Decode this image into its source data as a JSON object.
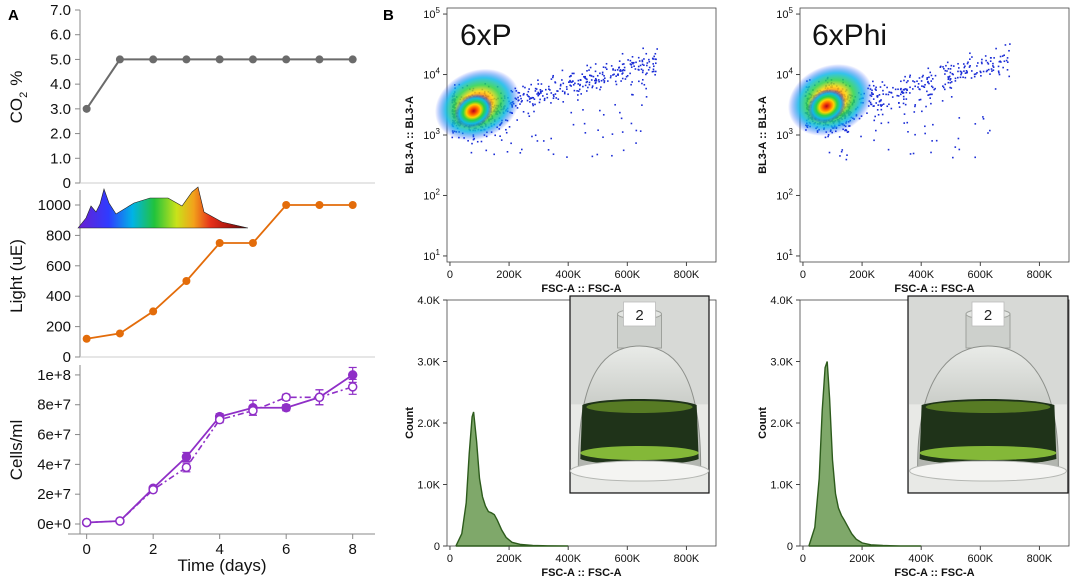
{
  "panel_labels": {
    "a": "A",
    "b": "B"
  },
  "sample_names": {
    "left": "6xP",
    "right": "6xPhi"
  },
  "colors": {
    "co2": "#6b6b6b",
    "light": "#e36c0a",
    "cells": "#8f2fc7",
    "hist_fill": "#7fa86a",
    "hist_line": "#2d5b1c",
    "flask_glass": "#c9ccc9",
    "flask_liquid": "#1f3319",
    "flask_algae": "#8fc63c"
  },
  "chart_data": [
    {
      "id": "co2",
      "type": "line",
      "xlabel": "",
      "ylabel": "CO₂ %",
      "ylabel_main": "CO",
      "ylabel_sub": "2",
      "ylabel_tail": "%",
      "x": [
        0,
        1,
        2,
        3,
        4,
        5,
        6,
        7,
        8
      ],
      "series": [
        {
          "name": "CO2",
          "values": [
            3.0,
            5.0,
            5.0,
            5.0,
            5.0,
            5.0,
            5.0,
            5.0,
            5.0
          ]
        }
      ],
      "ylim": [
        0,
        7
      ],
      "xlim": [
        -0.2,
        8.4
      ],
      "yticks": [
        "0",
        "1.0",
        "2.0",
        "3.0",
        "4.0",
        "5.0",
        "6.0",
        "7.0"
      ],
      "ytick_values": [
        0,
        1,
        2,
        3,
        4,
        5,
        6,
        7
      ]
    },
    {
      "id": "light",
      "type": "line",
      "xlabel": "",
      "ylabel": "Light (uE)",
      "x": [
        0,
        1,
        2,
        3,
        4,
        5,
        6,
        7,
        8
      ],
      "series": [
        {
          "name": "Light",
          "values": [
            120,
            155,
            300,
            500,
            750,
            750,
            1000,
            1000,
            1000
          ]
        }
      ],
      "ylim": [
        0,
        1000
      ],
      "xlim": [
        -0.2,
        8.4
      ],
      "yticks": [
        "0",
        "200",
        "400",
        "600",
        "800",
        "1000"
      ],
      "ytick_values": [
        0,
        200,
        400,
        600,
        800,
        1000
      ],
      "inset": "light spectrum"
    },
    {
      "id": "cells",
      "type": "line",
      "xlabel": "Time (days)",
      "ylabel": "Cells/ml",
      "x": [
        0,
        1,
        2,
        3,
        4,
        5,
        6,
        7,
        8
      ],
      "series": [
        {
          "name": "6xP",
          "style": "solid, filled markers",
          "values": [
            1000000.0,
            2000000.0,
            24000000.0,
            45000000.0,
            72000000.0,
            78000000.0,
            78000000.0,
            85000000.0,
            100000000.0
          ],
          "errors": [
            0,
            0,
            1000000.0,
            3000000.0,
            2000000.0,
            5000000.0,
            2000000.0,
            5000000.0,
            5000000.0
          ]
        },
        {
          "name": "6xPhi",
          "style": "dash-dot, open markers",
          "values": [
            1000000.0,
            2000000.0,
            23000000.0,
            38000000.0,
            70000000.0,
            76000000.0,
            85000000.0,
            85000000.0,
            92000000.0
          ],
          "errors": [
            0,
            0,
            1000000.0,
            3000000.0,
            2000000.0,
            3000000.0,
            2000000.0,
            5000000.0,
            5000000.0
          ]
        }
      ],
      "ylim": [
        0,
        108000000.0
      ],
      "xlim": [
        -0.2,
        8.4
      ],
      "yticks": [
        "0e+0",
        "2e+7",
        "4e+7",
        "6e+7",
        "8e+7",
        "1e+8"
      ],
      "ytick_values": [
        0,
        20000000.0,
        40000000.0,
        60000000.0,
        80000000.0,
        100000000.0
      ],
      "xticks": [
        "0",
        "2",
        "4",
        "6",
        "8"
      ],
      "xtick_values": [
        0,
        2,
        4,
        6,
        8
      ]
    },
    {
      "id": "scatter_6xP",
      "type": "scatter",
      "title": "6xP",
      "xlabel": "FSC-A :: FSC-A",
      "ylabel": "BL3-A :: BL3-A",
      "xlim": [
        -10000,
        900000
      ],
      "ylim_log10": [
        0.9,
        5.1
      ],
      "xticks": [
        "0",
        "200K",
        "400K",
        "600K",
        "800K"
      ],
      "xtick_values": [
        0,
        200000,
        400000,
        600000,
        800000
      ],
      "ytick_base": "10",
      "yticks_exp": [
        "1",
        "2",
        "3",
        "4",
        "5"
      ],
      "ytick_values_log10": [
        1,
        2,
        3,
        4,
        5
      ],
      "density_center": {
        "x": 80000,
        "y": 2500
      }
    },
    {
      "id": "scatter_6xPhi",
      "type": "scatter",
      "title": "6xPhi",
      "xlabel": "FSC-A :: FSC-A",
      "ylabel": "BL3-A :: BL3-A",
      "xlim": [
        -10000,
        900000
      ],
      "ylim_log10": [
        0.9,
        5.1
      ],
      "xticks": [
        "0",
        "200K",
        "400K",
        "600K",
        "800K"
      ],
      "xtick_values": [
        0,
        200000,
        400000,
        600000,
        800000
      ],
      "ytick_base": "10",
      "yticks_exp": [
        "1",
        "2",
        "3",
        "4",
        "5"
      ],
      "ytick_values_log10": [
        1,
        2,
        3,
        4,
        5
      ],
      "density_center": {
        "x": 80000,
        "y": 3000
      }
    },
    {
      "id": "hist_6xP",
      "type": "area",
      "xlabel": "FSC-A :: FSC-A",
      "ylabel": "Count",
      "xlim": [
        -10000,
        900000
      ],
      "ylim": [
        0,
        4000
      ],
      "xticks": [
        "0",
        "200K",
        "400K",
        "600K",
        "800K"
      ],
      "xtick_values": [
        0,
        200000,
        400000,
        600000,
        800000
      ],
      "yticks": [
        "0",
        "1.0K",
        "2.0K",
        "3.0K",
        "4.0K"
      ],
      "ytick_values": [
        0,
        1000,
        2000,
        3000,
        4000
      ],
      "x": [
        20000,
        40000,
        55000,
        65000,
        75000,
        80000,
        90000,
        100000,
        110000,
        120000,
        130000,
        140000,
        150000,
        160000,
        175000,
        190000,
        210000,
        240000,
        280000,
        330000,
        400000
      ],
      "values": [
        0,
        200,
        700,
        1500,
        2100,
        2180,
        1700,
        1100,
        800,
        650,
        560,
        540,
        510,
        420,
        260,
        140,
        60,
        25,
        10,
        3,
        0
      ]
    },
    {
      "id": "hist_6xPhi",
      "type": "area",
      "xlabel": "FSC-A :: FSC-A",
      "ylabel": "Count",
      "xlim": [
        -10000,
        900000
      ],
      "ylim": [
        0,
        4000
      ],
      "xticks": [
        "0",
        "200K",
        "400K",
        "600K",
        "800K"
      ],
      "xtick_values": [
        0,
        200000,
        400000,
        600000,
        800000
      ],
      "yticks": [
        "0",
        "1.0K",
        "2.0K",
        "3.0K",
        "4.0K"
      ],
      "ytick_values": [
        0,
        1000,
        2000,
        3000,
        4000
      ],
      "x": [
        20000,
        40000,
        55000,
        65000,
        75000,
        82000,
        90000,
        100000,
        110000,
        120000,
        130000,
        140000,
        150000,
        165000,
        180000,
        200000,
        230000,
        270000,
        330000,
        400000
      ],
      "values": [
        0,
        300,
        1100,
        2200,
        2900,
        3000,
        2400,
        1400,
        850,
        620,
        500,
        420,
        330,
        200,
        110,
        50,
        20,
        8,
        2,
        0
      ]
    }
  ],
  "flask_photos": [
    {
      "label": "2"
    },
    {
      "label": "2"
    }
  ]
}
